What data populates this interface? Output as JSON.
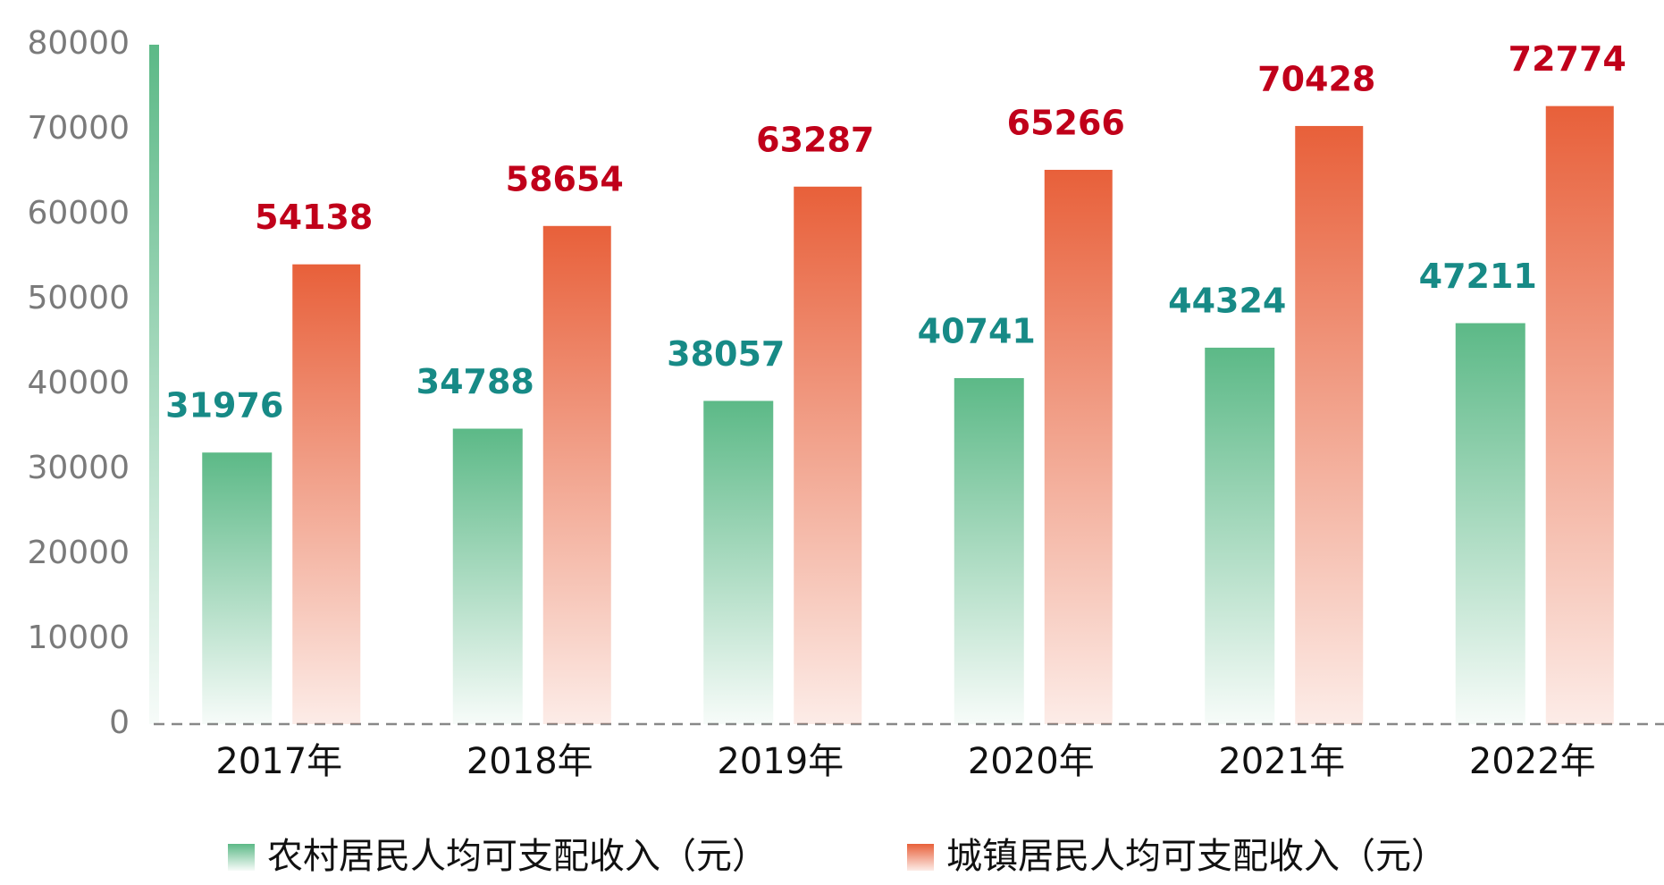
{
  "chart_data": {
    "type": "bar",
    "categories": [
      "2017年",
      "2018年",
      "2019年",
      "2020年",
      "2021年",
      "2022年"
    ],
    "series": [
      {
        "name": "农村居民人均可支配收入（元）",
        "color": "#5cb987",
        "label_color": "#178a86",
        "values": [
          31976,
          34788,
          38057,
          40741,
          44324,
          47211
        ]
      },
      {
        "name": "城镇居民人均可支配收入（元）",
        "color": "#e8603a",
        "label_color": "#c0001a",
        "values": [
          54138,
          58654,
          63287,
          65266,
          70428,
          72774
        ]
      }
    ],
    "ylim": [
      0,
      80000
    ],
    "yticks": [
      0,
      10000,
      20000,
      30000,
      40000,
      50000,
      60000,
      70000,
      80000
    ]
  }
}
